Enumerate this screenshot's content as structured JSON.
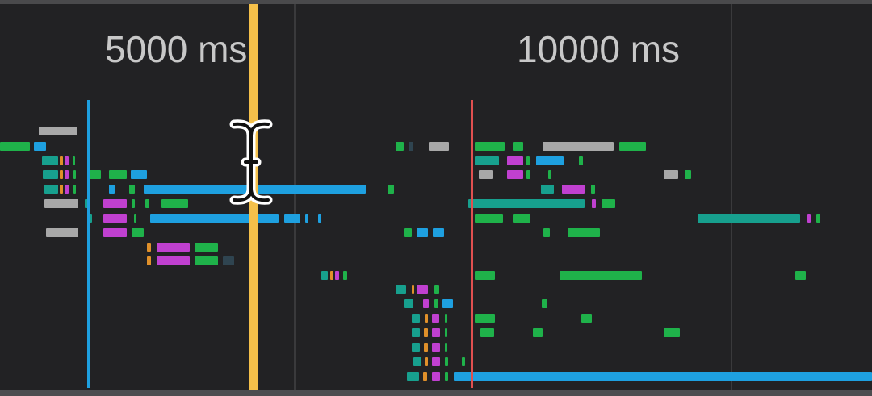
{
  "timeline": {
    "tick_labels": [
      "5000 ms",
      "10000 ms"
    ],
    "markers": {
      "dom_content_loaded": "#1ea0e0",
      "load": "#e05050",
      "playhead": "#f5c04a"
    },
    "colors": {
      "green": "#1fb24a",
      "blue": "#1ea0e0",
      "teal": "#17a08e",
      "magenta": "#c040d0",
      "orange": "#e0902a",
      "gray": "#a8a8a8",
      "dim": "#2f4450"
    },
    "cursor": "text-cursor-icon"
  }
}
